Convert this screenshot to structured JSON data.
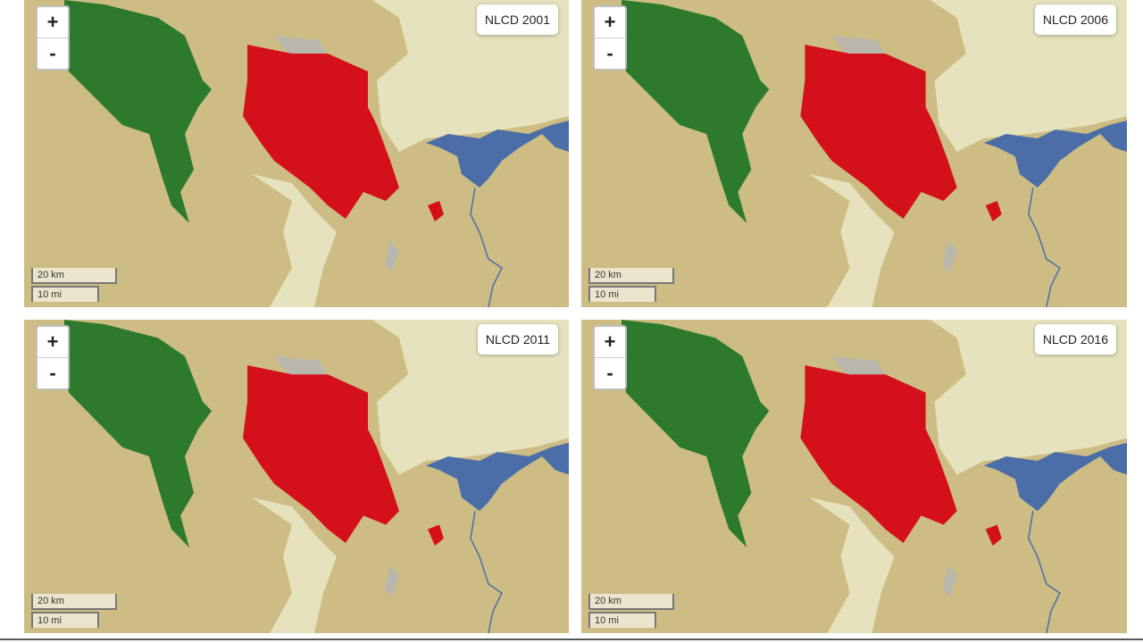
{
  "panels": [
    {
      "label": "NLCD 2001",
      "zoom_in": "+",
      "zoom_out": "-",
      "scale_km": "20 km",
      "scale_mi": "10 mi"
    },
    {
      "label": "NLCD 2006",
      "zoom_in": "+",
      "zoom_out": "-",
      "scale_km": "20 km",
      "scale_mi": "10 mi"
    },
    {
      "label": "NLCD 2011",
      "zoom_in": "+",
      "zoom_out": "-",
      "scale_km": "20 km",
      "scale_mi": "10 mi"
    },
    {
      "label": "NLCD 2016",
      "zoom_in": "+",
      "zoom_out": "-",
      "scale_km": "20 km",
      "scale_mi": "10 mi"
    }
  ]
}
